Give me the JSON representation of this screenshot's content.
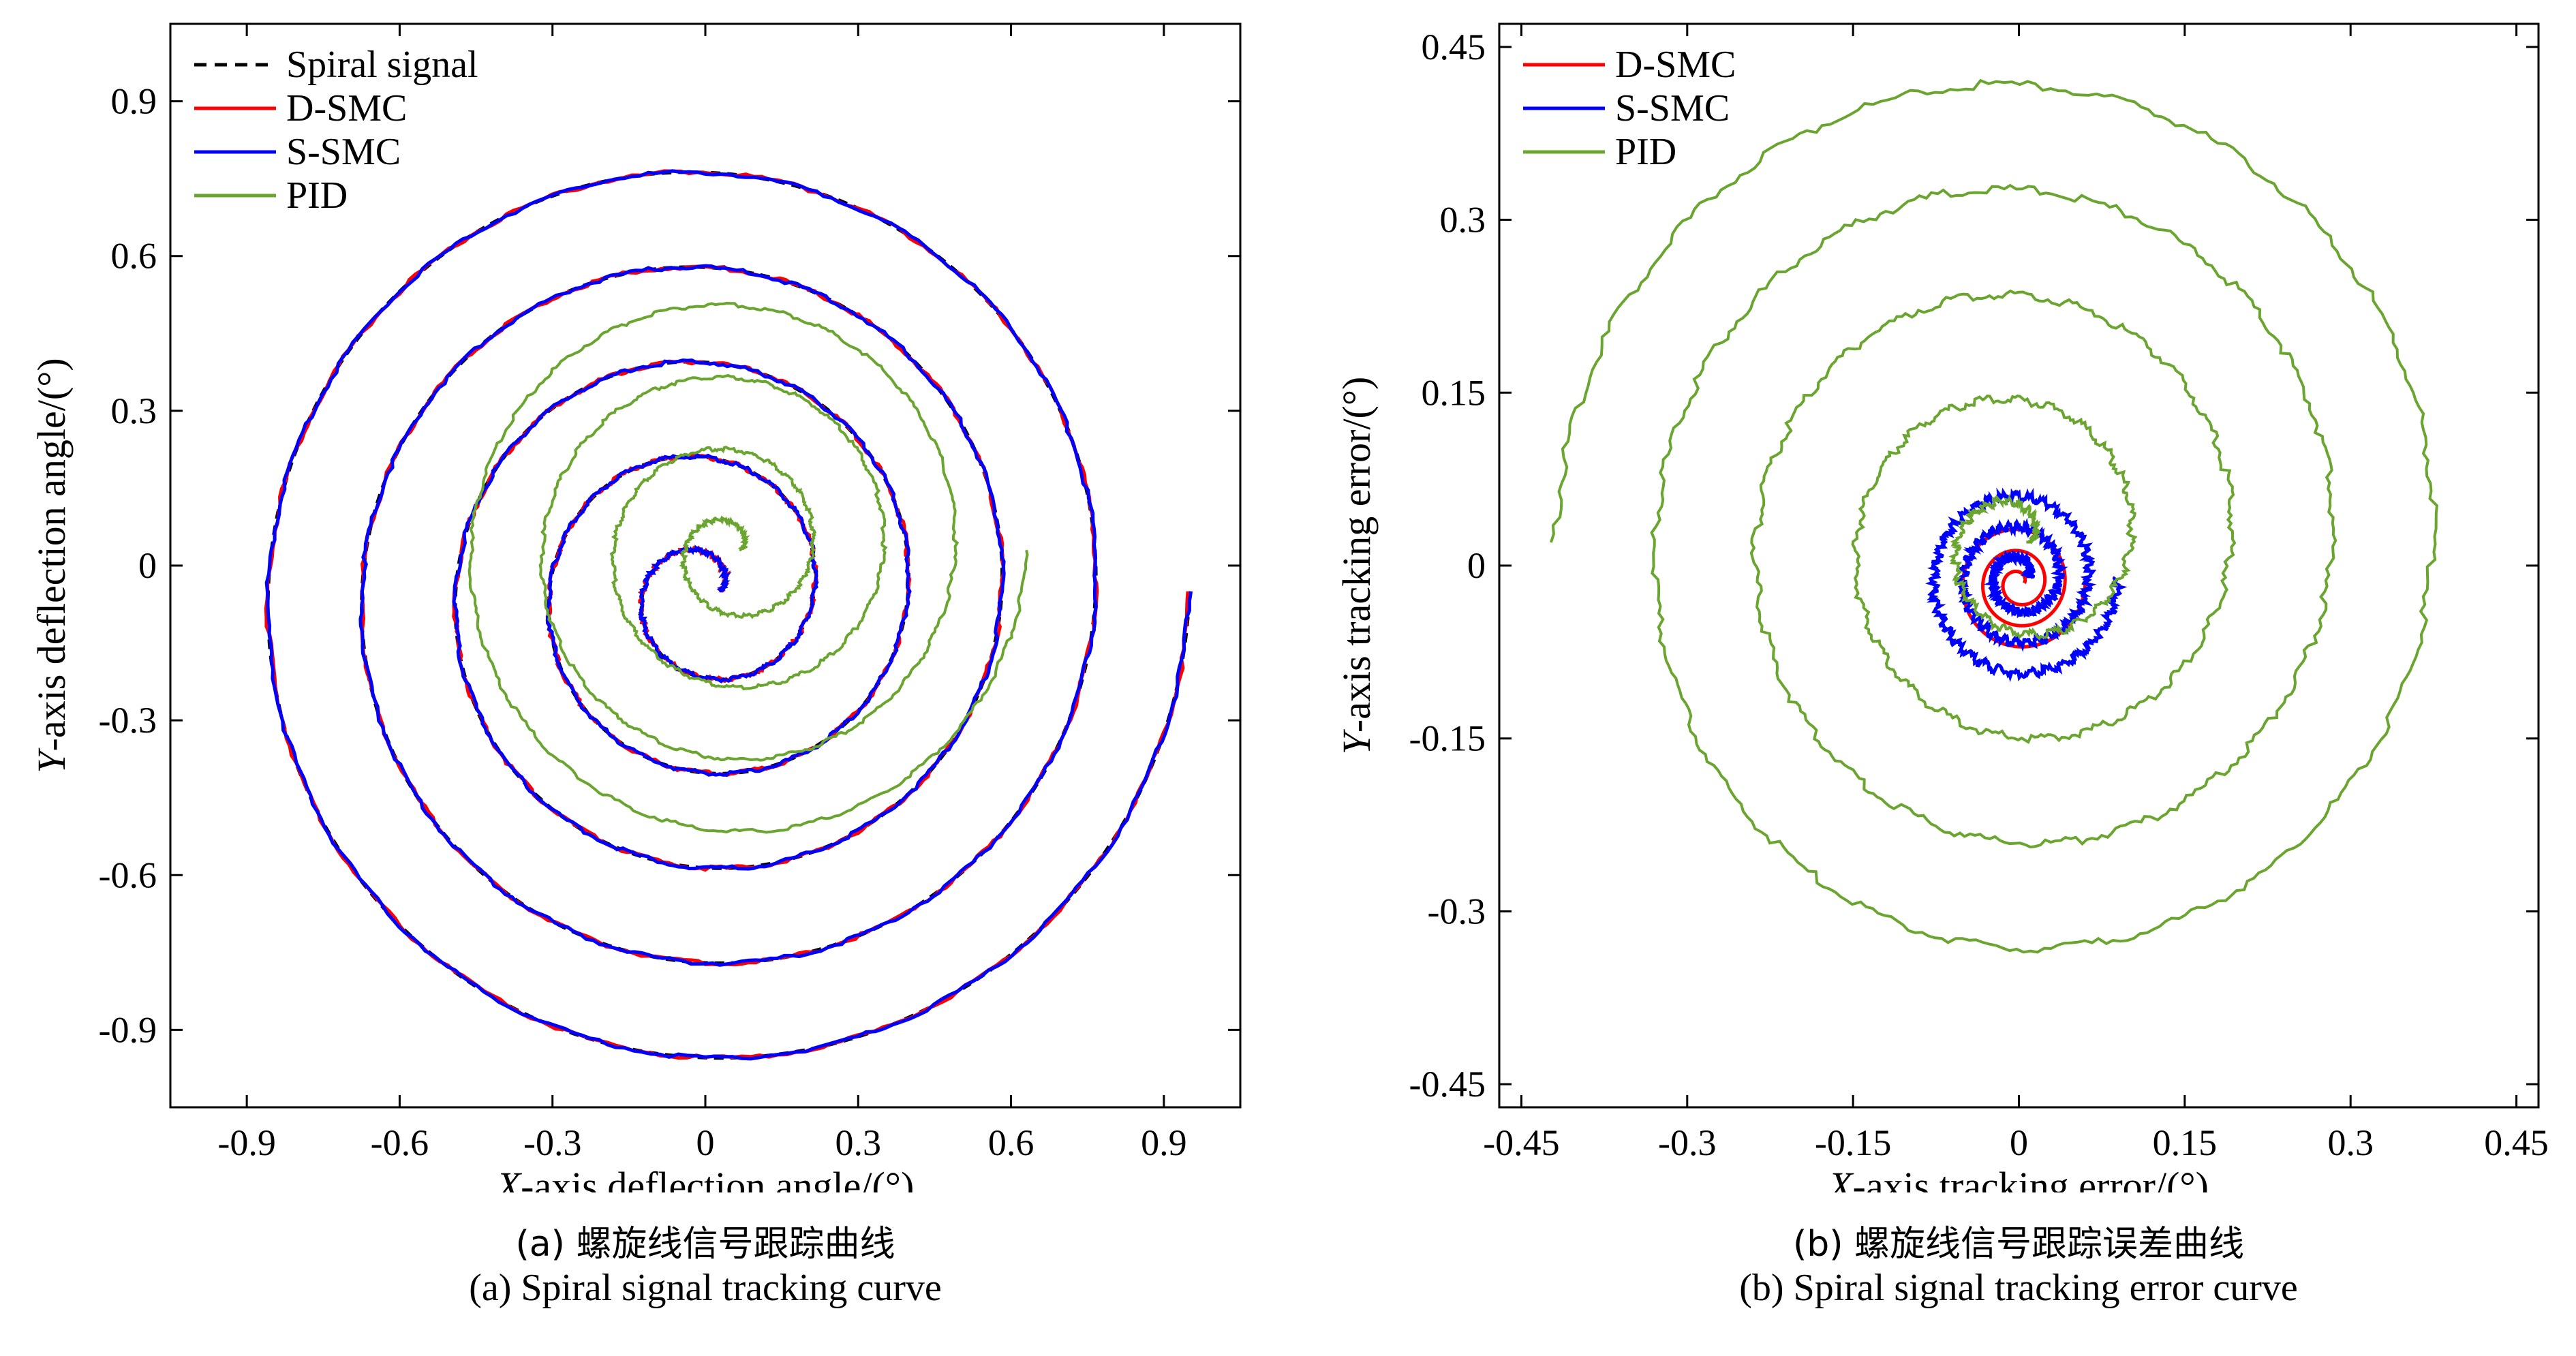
{
  "chart_data": [
    {
      "type": "line",
      "panel": "a",
      "xlabel_prefix": "X",
      "xlabel_rest": "-axis deflection angle/(°)",
      "ylabel_prefix": "Y",
      "ylabel_rest": "-axis deflection angle/(°)",
      "xlim": [
        -1.05,
        1.05
      ],
      "ylim": [
        -1.05,
        1.05
      ],
      "xticks": [
        "-0.9",
        "-0.6",
        "-0.3",
        "0",
        "0.3",
        "0.6",
        "0.9"
      ],
      "yticks": [
        "0.9",
        "0.6",
        "0.3",
        "0",
        "-0.3",
        "-0.6",
        "-0.9"
      ],
      "legend": [
        "Spiral signal",
        "D-SMC",
        "S-SMC",
        "PID"
      ],
      "legend_position": "top-left",
      "series": [
        {
          "name": "Spiral signal",
          "color": "#000000",
          "style": "dashed",
          "spiral": {
            "r_start": 0.03,
            "r_end": 0.95,
            "turns": 5.0,
            "cx": 0.0,
            "cy": -0.05
          }
        },
        {
          "name": "D-SMC",
          "color": "#ff0000",
          "spiral": {
            "r_start": 0.03,
            "r_end": 0.95,
            "turns": 5.0,
            "cx": 0.0,
            "cy": -0.05
          }
        },
        {
          "name": "S-SMC",
          "color": "#0000ff",
          "spiral": {
            "r_start": 0.03,
            "r_end": 0.95,
            "turns": 5.0,
            "cx": 0.0,
            "cy": -0.05
          }
        },
        {
          "name": "PID",
          "color": "#6aa530",
          "spiral": {
            "r_start": 0.02,
            "r_end": 0.58,
            "turns": 4.0,
            "cx": 0.05,
            "cy": 0.03
          }
        }
      ],
      "caption_cn": "(a) 螺旋线信号跟踪曲线",
      "caption_en": "(a) Spiral signal tracking curve"
    },
    {
      "type": "line",
      "panel": "b",
      "xlabel_prefix": "X",
      "xlabel_rest": "-axis tracking error/(°)",
      "ylabel_prefix": "Y",
      "ylabel_rest": "-axis tracking error/(°)",
      "xlim": [
        -0.47,
        0.47
      ],
      "ylim": [
        -0.47,
        0.47
      ],
      "xticks": [
        "-0.45",
        "-0.3",
        "-0.15",
        "0",
        "0.15",
        "0.3",
        "0.45"
      ],
      "yticks": [
        "0.45",
        "0.3",
        "0.15",
        "0",
        "-0.15",
        "-0.3",
        "-0.45"
      ],
      "legend": [
        "D-SMC",
        "S-SMC",
        "PID"
      ],
      "legend_position": "top-left",
      "series": [
        {
          "name": "D-SMC",
          "color": "#ff0000",
          "spiral": {
            "r_start": 0.005,
            "r_end": 0.06,
            "turns": 3.0,
            "cx": 0.0,
            "cy": -0.015
          }
        },
        {
          "name": "S-SMC",
          "color": "#0000ff",
          "spiral": {
            "r_start": 0.01,
            "r_end": 0.09,
            "turns": 3.0,
            "cx": 0.0,
            "cy": -0.01
          }
        },
        {
          "name": "PID",
          "color": "#6aa530",
          "spiral": {
            "r_start": 0.01,
            "r_end": 0.42,
            "turns": 4.5,
            "cx": 0.0,
            "cy": 0.02
          }
        }
      ],
      "caption_cn": "(b) 螺旋线信号跟踪误差曲线",
      "caption_en": "(b) Spiral signal tracking error curve"
    }
  ]
}
